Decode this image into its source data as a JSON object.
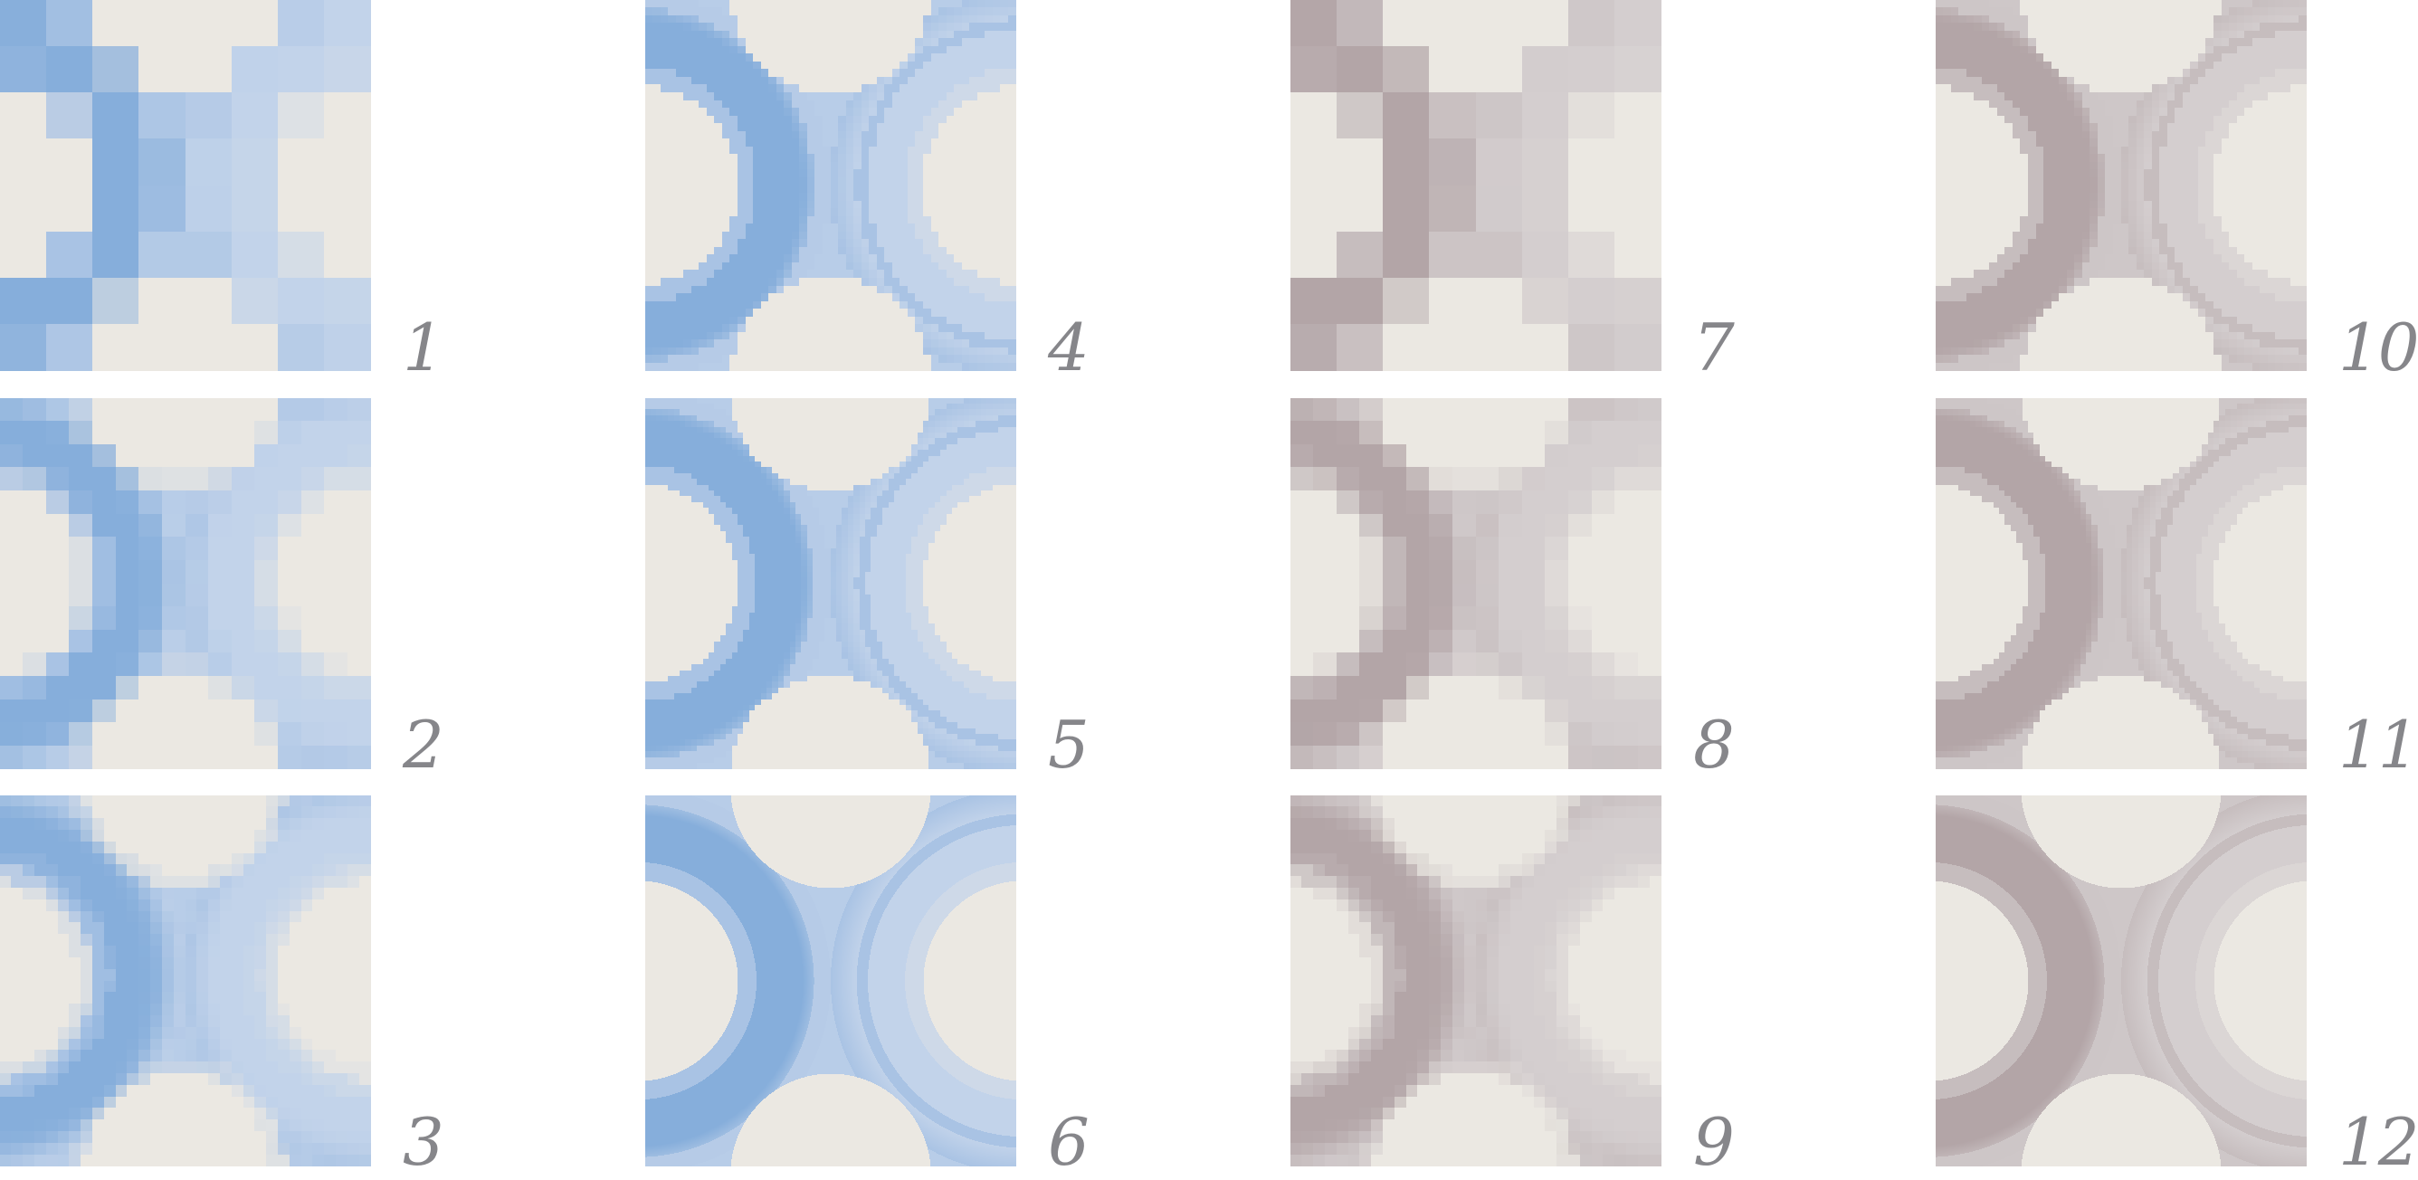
{
  "panels": [
    {
      "label": "1",
      "palette": "blue",
      "pixels": 8,
      "variant": "fade"
    },
    {
      "label": "2",
      "palette": "blue",
      "pixels": 16,
      "variant": "fade"
    },
    {
      "label": "3",
      "palette": "blue",
      "pixels": 32,
      "variant": "fade"
    },
    {
      "label": "4",
      "palette": "blue",
      "pixels": 48,
      "variant": "ring"
    },
    {
      "label": "5",
      "palette": "blue",
      "pixels": 64,
      "variant": "ring"
    },
    {
      "label": "6",
      "palette": "blue",
      "pixels": 0,
      "variant": "ring"
    },
    {
      "label": "7",
      "palette": "gray",
      "pixels": 8,
      "variant": "fade"
    },
    {
      "label": "8",
      "palette": "gray",
      "pixels": 16,
      "variant": "fade"
    },
    {
      "label": "9",
      "palette": "gray",
      "pixels": 32,
      "variant": "fade"
    },
    {
      "label": "10",
      "palette": "gray",
      "pixels": 48,
      "variant": "ring"
    },
    {
      "label": "11",
      "palette": "gray",
      "pixels": 64,
      "variant": "ring"
    },
    {
      "label": "12",
      "palette": "gray",
      "pixels": 0,
      "variant": "ring"
    }
  ],
  "colors": {
    "blue_dark": "#86aedb",
    "blue_mid": "#a9c3e4",
    "blue_light": "#c2d3ea",
    "gray_dark": "#b3a5a7",
    "gray_mid": "#c6bdbe",
    "gray_light": "#d4cecf",
    "cream": "#ebe8e2",
    "background": "#ffffff",
    "label": "#86868a"
  }
}
